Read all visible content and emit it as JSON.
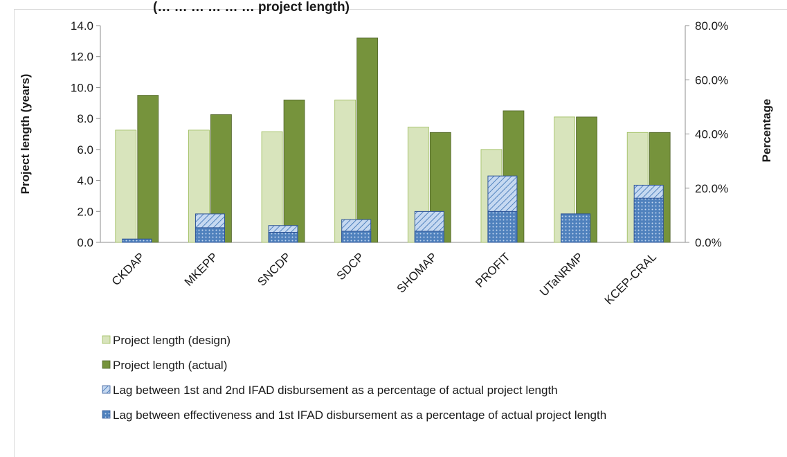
{
  "partial_title": "(… … … … … … project length)",
  "chart_data": {
    "type": "bar",
    "categories": [
      "CKDAP",
      "MKEPP",
      "SNCDP",
      "SDCP",
      "SHOMAP",
      "PROFIT",
      "UTaNRMP",
      "KCEP-CRAL"
    ],
    "ylabel": "Project length (years)",
    "y2label": "Percentage",
    "ylim": [
      0,
      14
    ],
    "y2lim": [
      0,
      0.8
    ],
    "yticks": [
      "0.0",
      "2.0",
      "4.0",
      "6.0",
      "8.0",
      "10.0",
      "12.0",
      "14.0"
    ],
    "y2ticks": [
      "0.0%",
      "20.0%",
      "40.0%",
      "60.0%",
      "80.0%"
    ],
    "grid": false,
    "legend_position": "bottom",
    "series": [
      {
        "name": "Project length (design)",
        "axis": "left",
        "color": "#d8e4bc",
        "border": "#9bbb59",
        "values": [
          7.25,
          7.25,
          7.15,
          9.2,
          7.45,
          6.0,
          8.1,
          7.1
        ]
      },
      {
        "name": "Project length (actual)",
        "axis": "left",
        "color": "#76933c",
        "border": "#4f6228",
        "values": [
          9.5,
          8.25,
          9.2,
          13.2,
          7.1,
          8.5,
          8.1,
          7.1
        ]
      },
      {
        "name": "Lag between 1st and 2nd IFAD disbursement as a percentage of actual project length",
        "axis": "right",
        "pattern": "diagonal-hatch",
        "color": "#4f81bd",
        "values": [
          0.012,
          0.105,
          0.062,
          0.084,
          0.114,
          0.245,
          0.105,
          0.211
        ]
      },
      {
        "name": "Lag between effectiveness and 1st IFAD disbursement as a percentage of actual project length",
        "axis": "right",
        "pattern": "dots",
        "color": "#4f81bd",
        "values": [
          0.012,
          0.054,
          0.037,
          0.041,
          0.041,
          0.114,
          0.105,
          0.163
        ]
      }
    ]
  }
}
